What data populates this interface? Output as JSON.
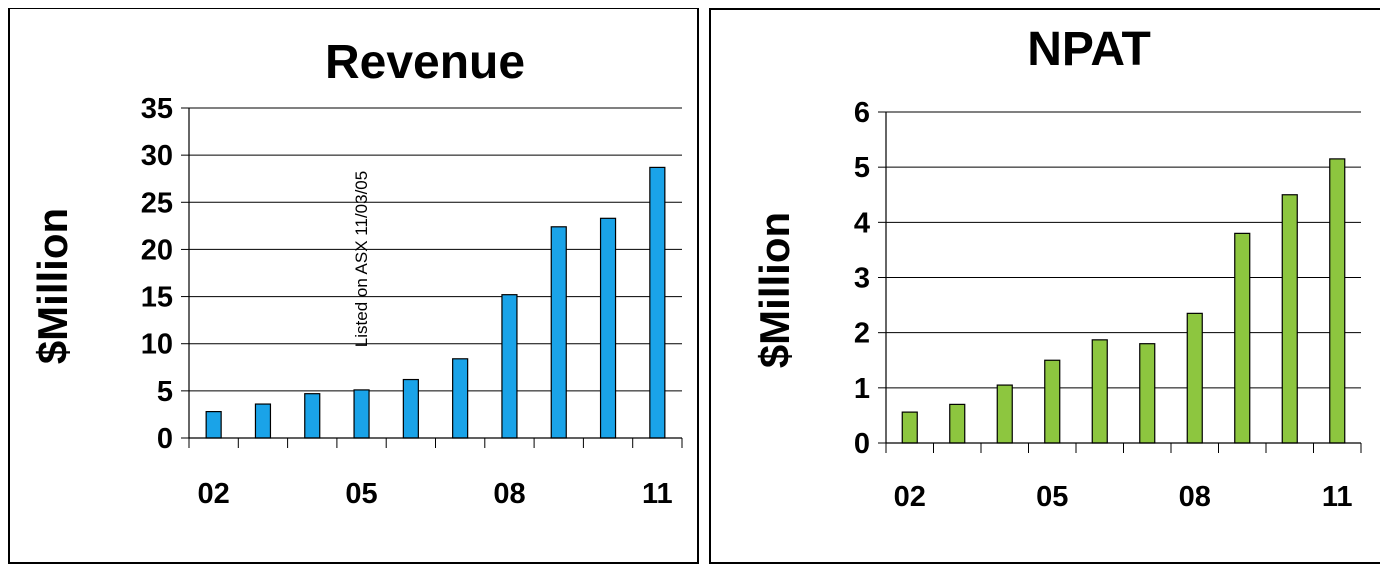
{
  "chart_data": [
    {
      "type": "bar",
      "title": "Revenue",
      "ylabel": "$Million",
      "xlabel": "",
      "ylim": [
        0,
        35
      ],
      "yticks": [
        0,
        5,
        10,
        15,
        20,
        25,
        30,
        35
      ],
      "categories": [
        "02",
        "03",
        "04",
        "05",
        "06",
        "07",
        "08",
        "09",
        "10",
        "11"
      ],
      "x_tick_labels": [
        "02",
        "05",
        "08",
        "11"
      ],
      "values": [
        2.8,
        3.6,
        4.7,
        5.1,
        6.2,
        8.4,
        15.2,
        22.4,
        23.3,
        28.7
      ],
      "bar_color": "#1aa3e8",
      "grid": true,
      "annotation": "Listed on ASX  11/03/05"
    },
    {
      "type": "bar",
      "title": "NPAT",
      "ylabel": "$Million",
      "xlabel": "",
      "ylim": [
        0,
        6
      ],
      "yticks": [
        0,
        1,
        2,
        3,
        4,
        5,
        6
      ],
      "categories": [
        "02",
        "03",
        "04",
        "05",
        "06",
        "07",
        "08",
        "09",
        "10",
        "11"
      ],
      "x_tick_labels": [
        "02",
        "05",
        "08",
        "11"
      ],
      "values": [
        0.56,
        0.7,
        1.05,
        1.5,
        1.87,
        1.8,
        2.35,
        3.8,
        4.5,
        5.15
      ],
      "bar_color": "#8dc63f",
      "grid": true
    }
  ]
}
